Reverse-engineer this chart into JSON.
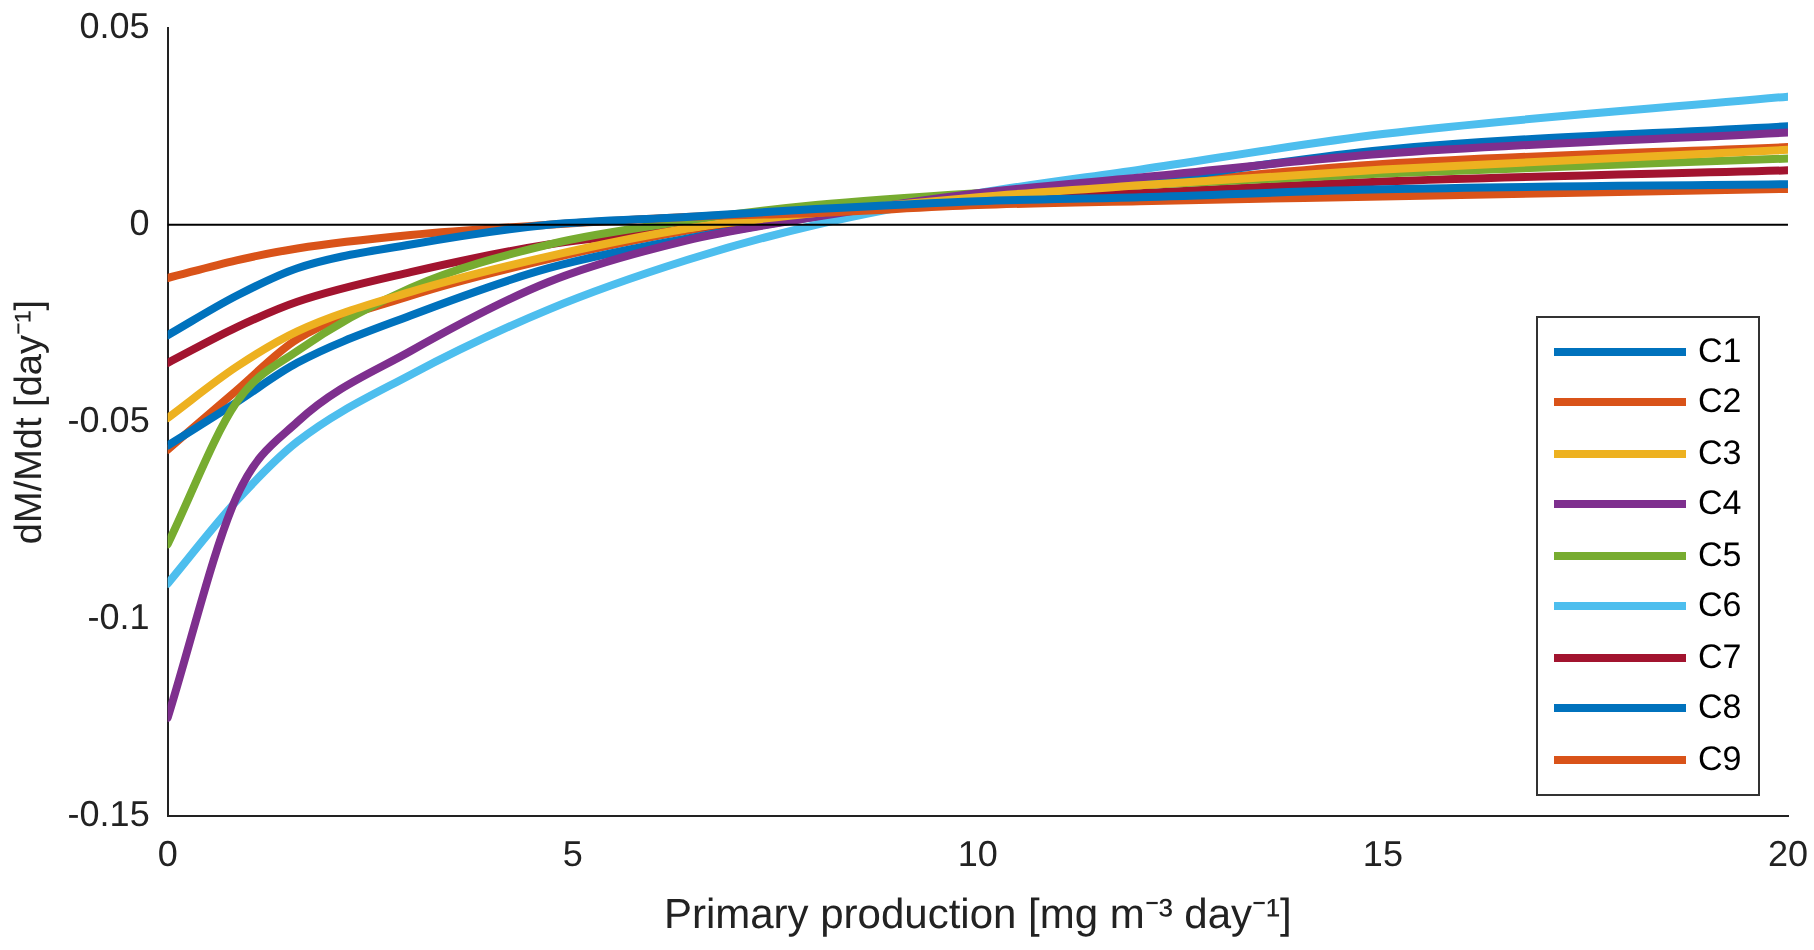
{
  "chart_data": {
    "type": "line",
    "xlabel": "Primary production [mg m⁻³ day⁻¹]",
    "ylabel": "dM/Mdt [day⁻¹]",
    "x": [
      0,
      0.85,
      1.6,
      3,
      4.7,
      6.4,
      8,
      10,
      12,
      15,
      20
    ],
    "series": [
      {
        "name": "C1",
        "color": "#0072bd",
        "values": [
          -0.028,
          -0.018,
          -0.011,
          -0.005,
          0,
          0.002,
          0.004,
          0.006,
          0.007,
          0.009,
          0.0103
        ]
      },
      {
        "name": "C2",
        "color": "#d95319",
        "values": [
          -0.0135,
          -0.009,
          -0.006,
          -0.0026,
          0,
          0.002,
          0.003,
          0.005,
          0.006,
          0.0072,
          0.0091
        ]
      },
      {
        "name": "C3",
        "color": "#edb120",
        "values": [
          -0.049,
          -0.036,
          -0.027,
          -0.017,
          -0.008,
          -0.001,
          0.003,
          0.007,
          0.01,
          0.014,
          0.019
        ]
      },
      {
        "name": "C4",
        "color": "#7e2f8e",
        "values": [
          -0.125,
          -0.069,
          -0.05,
          -0.032,
          -0.0145,
          -0.004,
          0.002,
          0.008,
          0.012,
          0.018,
          0.0234
        ]
      },
      {
        "name": "C5",
        "color": "#77ac30",
        "values": [
          -0.081,
          -0.045,
          -0.032,
          -0.016,
          -0.005,
          0.001,
          0.005,
          0.008,
          0.01,
          0.013,
          0.0168
        ]
      },
      {
        "name": "C6",
        "color": "#4dbeee",
        "values": [
          -0.091,
          -0.07,
          -0.055,
          -0.038,
          -0.0215,
          -0.009,
          0,
          0.008,
          0.014,
          0.023,
          0.0325
        ]
      },
      {
        "name": "C7",
        "color": "#a2142f",
        "values": [
          -0.035,
          -0.026,
          -0.0195,
          -0.012,
          -0.005,
          -0.001,
          0.003,
          0.006,
          0.008,
          0.011,
          0.0138
        ]
      },
      {
        "name": "C8",
        "color": "#0072bd",
        "values": [
          -0.056,
          -0.045,
          -0.035,
          -0.023,
          -0.011,
          -0.0035,
          0.002,
          0.007,
          0.011,
          0.019,
          0.025
        ]
      },
      {
        "name": "C9",
        "color": "#d95319",
        "values": [
          -0.057,
          -0.042,
          -0.029,
          -0.018,
          -0.0087,
          -0.0015,
          0.003,
          0.0065,
          0.01,
          0.0154,
          0.0197
        ]
      }
    ],
    "xlim": [
      0,
      20
    ],
    "xticks": [
      0,
      5,
      10,
      15,
      20
    ],
    "ylim": [
      -0.15,
      0.05
    ],
    "yticks": [
      -0.15,
      -0.1,
      -0.05,
      0,
      0.05
    ],
    "ref_lines": [
      {
        "axis": "y",
        "value": 0,
        "color": "#000000"
      }
    ],
    "legend": "right",
    "grid": false,
    "marker": "none",
    "line_style": "solid"
  }
}
